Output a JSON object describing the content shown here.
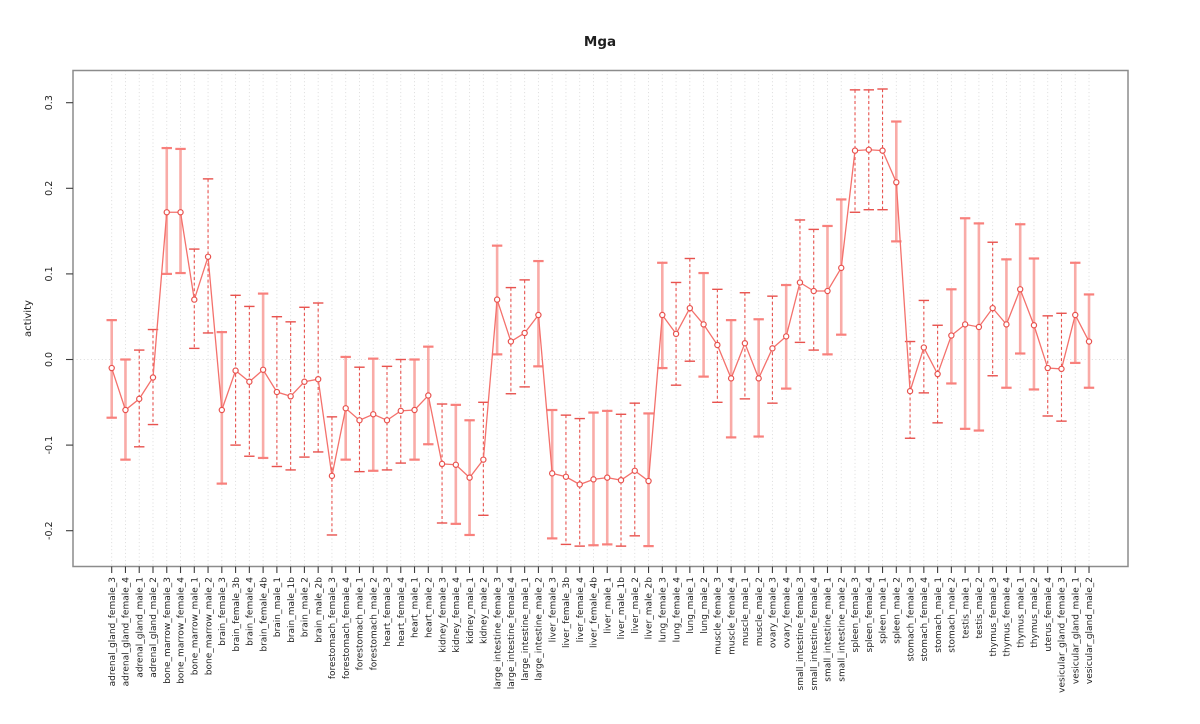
{
  "chart_data": {
    "type": "scatter",
    "subtype": "point_estimates_with_error_bars_connected_by_line",
    "title": "Mga",
    "xlabel": "",
    "ylabel": "activity",
    "ylim": [
      -0.24,
      0.34
    ],
    "yticks": [
      -0.2,
      -0.1,
      0.0,
      0.1,
      0.2,
      0.3
    ],
    "ytick_labels": [
      "-0.2",
      "-0.1",
      "0.0",
      "0.1",
      "0.2",
      "0.3"
    ],
    "grid": {
      "vertical_dotted_per_category": true,
      "horizontal_dotted_zero_line": true
    },
    "legend": "none",
    "categories": [
      "adrenal_gland_female_3",
      "adrenal_gland_female_4",
      "adrenal_gland_male_1",
      "adrenal_gland_male_2",
      "bone_marrow_female_3",
      "bone_marrow_female_4",
      "bone_marrow_male_1",
      "bone_marrow_male_2",
      "brain_female_3",
      "brain_female_3b",
      "brain_female_4",
      "brain_female_4b",
      "brain_male_1",
      "brain_male_1b",
      "brain_male_2",
      "brain_male_2b",
      "forestomach_female_3",
      "forestomach_female_4",
      "forestomach_male_1",
      "forestomach_male_2",
      "heart_female_3",
      "heart_female_4",
      "heart_male_1",
      "heart_male_2",
      "kidney_female_3",
      "kidney_female_4",
      "kidney_male_1",
      "kidney_male_2",
      "large_intestine_female_3",
      "large_intestine_female_4",
      "large_intestine_male_1",
      "large_intestine_male_2",
      "liver_female_3",
      "liver_female_3b",
      "liver_female_4",
      "liver_female_4b",
      "liver_male_1",
      "liver_male_1b",
      "liver_male_2",
      "liver_male_2b",
      "lung_female_3",
      "lung_female_4",
      "lung_male_1",
      "lung_male_2",
      "muscle_female_3",
      "muscle_female_4",
      "muscle_male_1",
      "muscle_male_2",
      "ovary_female_3",
      "ovary_female_4",
      "small_intestine_female_3",
      "small_intestine_female_4",
      "small_intestine_male_1",
      "small_intestine_male_2",
      "spleen_female_3",
      "spleen_female_4",
      "spleen_male_1",
      "spleen_male_2",
      "stomach_female_3",
      "stomach_female_4",
      "stomach_male_1",
      "stomach_male_2",
      "testis_male_1",
      "testis_male_2",
      "thymus_female_3",
      "thymus_female_4",
      "thymus_male_1",
      "thymus_male_2",
      "uterus_female_4",
      "vesicular_gland_female_3",
      "vesicular_gland_male_1",
      "vesicular_gland_male_2"
    ],
    "series": [
      {
        "name": "activity",
        "values": [
          -0.01,
          -0.059,
          -0.046,
          -0.021,
          0.172,
          0.172,
          0.07,
          0.12,
          -0.059,
          -0.013,
          -0.026,
          -0.012,
          -0.038,
          -0.043,
          -0.026,
          -0.023,
          -0.136,
          -0.057,
          -0.071,
          -0.064,
          -0.071,
          -0.06,
          -0.059,
          -0.042,
          -0.122,
          -0.123,
          -0.138,
          -0.117,
          0.07,
          0.021,
          0.031,
          0.052,
          -0.133,
          -0.137,
          -0.146,
          -0.14,
          -0.138,
          -0.141,
          -0.13,
          -0.142,
          0.052,
          0.03,
          0.06,
          0.041,
          0.017,
          -0.022,
          0.019,
          -0.022,
          0.013,
          0.027,
          0.09,
          0.08,
          0.08,
          0.107,
          0.244,
          0.245,
          0.244,
          0.207,
          -0.037,
          0.014,
          -0.017,
          0.028,
          0.041,
          0.038,
          0.06,
          0.041,
          0.082,
          0.04,
          -0.01,
          -0.011,
          0.052,
          0.021
        ],
        "ci_low": [
          -0.068,
          -0.117,
          -0.102,
          -0.076,
          0.1,
          0.101,
          0.013,
          0.031,
          -0.145,
          -0.1,
          -0.113,
          -0.115,
          -0.125,
          -0.129,
          -0.114,
          -0.108,
          -0.205,
          -0.117,
          -0.131,
          -0.13,
          -0.129,
          -0.121,
          -0.117,
          -0.099,
          -0.191,
          -0.192,
          -0.205,
          -0.182,
          0.006,
          -0.04,
          -0.032,
          -0.008,
          -0.209,
          -0.216,
          -0.218,
          -0.217,
          -0.216,
          -0.218,
          -0.206,
          -0.218,
          -0.01,
          -0.03,
          -0.002,
          -0.02,
          -0.05,
          -0.091,
          -0.046,
          -0.09,
          -0.051,
          -0.034,
          0.02,
          0.011,
          0.006,
          0.029,
          0.172,
          0.175,
          0.175,
          0.138,
          -0.092,
          -0.039,
          -0.074,
          -0.028,
          -0.081,
          -0.083,
          -0.019,
          -0.033,
          0.007,
          -0.035,
          -0.066,
          -0.072,
          -0.004,
          -0.033
        ],
        "ci_high": [
          0.046,
          0.0,
          0.011,
          0.035,
          0.247,
          0.246,
          0.129,
          0.211,
          0.032,
          0.075,
          0.062,
          0.077,
          0.05,
          0.044,
          0.061,
          0.066,
          -0.067,
          0.003,
          -0.009,
          0.001,
          -0.008,
          0.0,
          0.0,
          0.015,
          -0.052,
          -0.053,
          -0.071,
          -0.05,
          0.133,
          0.084,
          0.093,
          0.115,
          -0.059,
          -0.065,
          -0.069,
          -0.062,
          -0.06,
          -0.064,
          -0.051,
          -0.063,
          0.113,
          0.09,
          0.118,
          0.101,
          0.082,
          0.046,
          0.078,
          0.047,
          0.074,
          0.087,
          0.163,
          0.152,
          0.156,
          0.187,
          0.315,
          0.315,
          0.316,
          0.278,
          0.021,
          0.069,
          0.04,
          0.082,
          0.165,
          0.159,
          0.137,
          0.117,
          0.158,
          0.118,
          0.051,
          0.054,
          0.113,
          0.076
        ],
        "bar_style": [
          "solid",
          "solid",
          "dashed",
          "dashed",
          "solid",
          "solid",
          "dashed",
          "dashed",
          "solid",
          "dashed",
          "dashed",
          "solid",
          "dashed",
          "dashed",
          "dashed",
          "dashed",
          "dashed",
          "solid",
          "dashed",
          "solid",
          "dashed",
          "dashed",
          "solid",
          "solid",
          "dashed",
          "solid",
          "solid",
          "dashed",
          "solid",
          "dashed",
          "dashed",
          "solid",
          "solid",
          "dashed",
          "dashed",
          "solid",
          "solid",
          "dashed",
          "dashed",
          "solid",
          "solid",
          "dashed",
          "dashed",
          "solid",
          "dashed",
          "solid",
          "dashed",
          "solid",
          "dashed",
          "solid",
          "dashed",
          "dashed",
          "solid",
          "solid",
          "dashed",
          "dashed",
          "dashed",
          "solid",
          "dashed",
          "dashed",
          "dashed",
          "solid",
          "solid",
          "solid",
          "dashed",
          "solid",
          "solid",
          "solid",
          "dashed",
          "dashed",
          "solid",
          "solid"
        ]
      }
    ],
    "colors": {
      "line": "#f4716c",
      "point_stroke": "#e8524e",
      "point_fill": "#ffffff",
      "errorbar_solid": "#f9aba7",
      "errorbar_cap": "#f8807c",
      "errorbar_dashed": "#e8524e",
      "grid": "#d8d8d8",
      "zero_line": "#dcdcdc",
      "box": "#8c8c8c",
      "tick": "#3c3c3c",
      "text": "#1f1f1f",
      "background": "#ffffff"
    }
  }
}
